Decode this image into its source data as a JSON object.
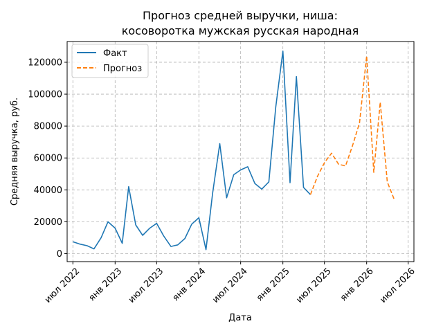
{
  "chart_data": {
    "type": "line",
    "title_line1": "Прогноз средней выручки, ниша:",
    "title_line2": "косоворотка мужская русская народная",
    "xlabel": "Дата",
    "ylabel": "Средняя выручка, руб.",
    "ylim": [
      -5000,
      133000
    ],
    "yticks": [
      0,
      20000,
      40000,
      60000,
      80000,
      100000,
      120000
    ],
    "xlim": [
      "2022-06-06",
      "2026-07-26"
    ],
    "xticks": [
      {
        "date": "2022-07-01",
        "label": "июл 2022"
      },
      {
        "date": "2023-01-01",
        "label": "янв 2023"
      },
      {
        "date": "2023-07-01",
        "label": "июл 2023"
      },
      {
        "date": "2024-01-01",
        "label": "янв 2024"
      },
      {
        "date": "2024-07-01",
        "label": "июл 2024"
      },
      {
        "date": "2025-01-01",
        "label": "янв 2025"
      },
      {
        "date": "2025-07-01",
        "label": "июл 2025"
      },
      {
        "date": "2026-01-01",
        "label": "янв 2026"
      },
      {
        "date": "2026-07-01",
        "label": "июл 2026"
      }
    ],
    "grid": true,
    "legend_position": "top-left",
    "series": [
      {
        "name": "Факт",
        "color": "#1f77b4",
        "style": "solid",
        "points": [
          {
            "x": "2022-07-01",
            "y": 7500
          },
          {
            "x": "2022-08-01",
            "y": 6000
          },
          {
            "x": "2022-09-01",
            "y": 5000
          },
          {
            "x": "2022-10-01",
            "y": 3000
          },
          {
            "x": "2022-11-01",
            "y": 10000
          },
          {
            "x": "2022-12-01",
            "y": 20000
          },
          {
            "x": "2023-01-01",
            "y": 16000
          },
          {
            "x": "2023-02-01",
            "y": 6500
          },
          {
            "x": "2023-03-01",
            "y": 42000
          },
          {
            "x": "2023-04-01",
            "y": 18000
          },
          {
            "x": "2023-05-01",
            "y": 11500
          },
          {
            "x": "2023-06-01",
            "y": 16000
          },
          {
            "x": "2023-07-01",
            "y": 19000
          },
          {
            "x": "2023-08-01",
            "y": 11000
          },
          {
            "x": "2023-09-01",
            "y": 4500
          },
          {
            "x": "2023-10-01",
            "y": 5500
          },
          {
            "x": "2023-11-01",
            "y": 9500
          },
          {
            "x": "2023-12-01",
            "y": 18500
          },
          {
            "x": "2024-01-01",
            "y": 22500
          },
          {
            "x": "2024-02-01",
            "y": 2500
          },
          {
            "x": "2024-03-01",
            "y": 38000
          },
          {
            "x": "2024-04-01",
            "y": 69000
          },
          {
            "x": "2024-05-01",
            "y": 35000
          },
          {
            "x": "2024-06-01",
            "y": 49500
          },
          {
            "x": "2024-07-01",
            "y": 52500
          },
          {
            "x": "2024-08-01",
            "y": 54500
          },
          {
            "x": "2024-09-01",
            "y": 44000
          },
          {
            "x": "2024-10-01",
            "y": 40500
          },
          {
            "x": "2024-11-01",
            "y": 45000
          },
          {
            "x": "2024-12-01",
            "y": 92000
          },
          {
            "x": "2025-01-01",
            "y": 127000
          },
          {
            "x": "2025-02-01",
            "y": 44500
          },
          {
            "x": "2025-03-01",
            "y": 111000
          },
          {
            "x": "2025-04-01",
            "y": 41500
          },
          {
            "x": "2025-05-01",
            "y": 37000
          }
        ]
      },
      {
        "name": "Прогноз",
        "color": "#ff7f0e",
        "style": "dashed",
        "points": [
          {
            "x": "2025-05-01",
            "y": 37000
          },
          {
            "x": "2025-06-01",
            "y": 48500
          },
          {
            "x": "2025-07-01",
            "y": 57000
          },
          {
            "x": "2025-08-01",
            "y": 63000
          },
          {
            "x": "2025-09-01",
            "y": 56000
          },
          {
            "x": "2025-10-01",
            "y": 55000
          },
          {
            "x": "2025-11-01",
            "y": 68000
          },
          {
            "x": "2025-12-01",
            "y": 82000
          },
          {
            "x": "2026-01-01",
            "y": 124000
          },
          {
            "x": "2026-02-01",
            "y": 51000
          },
          {
            "x": "2026-03-01",
            "y": 95000
          },
          {
            "x": "2026-04-01",
            "y": 45000
          },
          {
            "x": "2026-05-01",
            "y": 34000
          }
        ]
      }
    ]
  }
}
